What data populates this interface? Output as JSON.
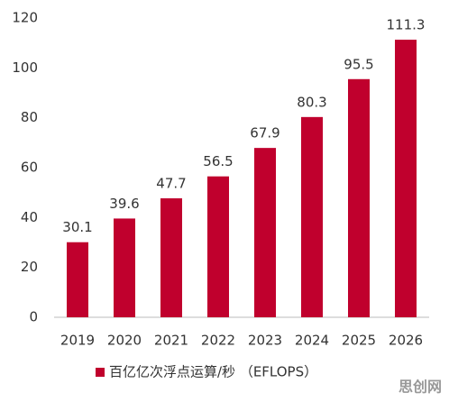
{
  "chart_data": {
    "type": "bar",
    "categories": [
      "2019",
      "2020",
      "2021",
      "2022",
      "2023",
      "2024",
      "2025",
      "2026"
    ],
    "series": [
      {
        "name": "百亿亿次浮点运算/秒 （EFLOPS）",
        "color": "#c0002d",
        "values": [
          30.1,
          39.6,
          47.7,
          56.5,
          67.9,
          80.3,
          95.5,
          111.3
        ]
      }
    ],
    "ylim": [
      0,
      120
    ],
    "yticks": [
      0,
      20,
      40,
      60,
      80,
      100,
      120
    ],
    "grid": false,
    "legend": "bottom",
    "watermark": "思创网"
  }
}
